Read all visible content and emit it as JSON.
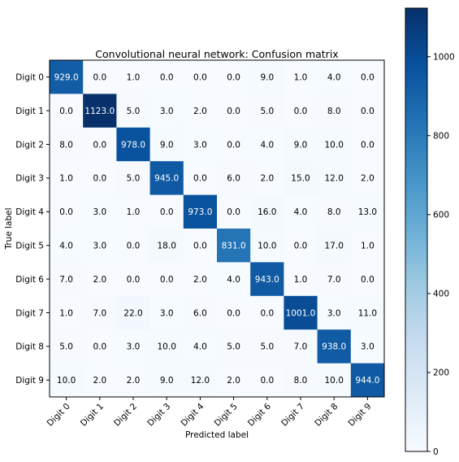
{
  "chart_data": {
    "type": "heatmap",
    "title": "Convolutional neural network: Confusion matrix",
    "xlabel": "Predicted label",
    "ylabel": "True label",
    "x_categories": [
      "Digit 0",
      "Digit 1",
      "Digit 2",
      "Digit 3",
      "Digit 4",
      "Digit 5",
      "Digit 6",
      "Digit 7",
      "Digit 8",
      "Digit 9"
    ],
    "y_categories": [
      "Digit 0",
      "Digit 1",
      "Digit 2",
      "Digit 3",
      "Digit 4",
      "Digit 5",
      "Digit 6",
      "Digit 7",
      "Digit 8",
      "Digit 9"
    ],
    "values": [
      [
        "929.0",
        "0.0",
        "1.0",
        "0.0",
        "0.0",
        "0.0",
        "9.0",
        "1.0",
        "4.0",
        "0.0"
      ],
      [
        "0.0",
        "1123.0",
        "5.0",
        "3.0",
        "2.0",
        "0.0",
        "5.0",
        "0.0",
        "8.0",
        "0.0"
      ],
      [
        "8.0",
        "0.0",
        "978.0",
        "9.0",
        "3.0",
        "0.0",
        "4.0",
        "9.0",
        "10.0",
        "0.0"
      ],
      [
        "1.0",
        "0.0",
        "5.0",
        "945.0",
        "0.0",
        "6.0",
        "2.0",
        "15.0",
        "12.0",
        "2.0"
      ],
      [
        "0.0",
        "3.0",
        "1.0",
        "0.0",
        "973.0",
        "0.0",
        "16.0",
        "4.0",
        "8.0",
        "13.0"
      ],
      [
        "4.0",
        "3.0",
        "0.0",
        "18.0",
        "0.0",
        "831.0",
        "10.0",
        "0.0",
        "17.0",
        "1.0"
      ],
      [
        "7.0",
        "2.0",
        "0.0",
        "0.0",
        "2.0",
        "4.0",
        "943.0",
        "1.0",
        "7.0",
        "0.0"
      ],
      [
        "1.0",
        "7.0",
        "22.0",
        "3.0",
        "6.0",
        "0.0",
        "0.0",
        "1001.0",
        "3.0",
        "11.0"
      ],
      [
        "5.0",
        "0.0",
        "3.0",
        "10.0",
        "4.0",
        "5.0",
        "5.0",
        "7.0",
        "938.0",
        "3.0"
      ],
      [
        "10.0",
        "2.0",
        "2.0",
        "9.0",
        "12.0",
        "2.0",
        "0.0",
        "8.0",
        "10.0",
        "944.0"
      ]
    ],
    "color_range": [
      0,
      1123
    ],
    "colormap": "Blues",
    "colorbar_ticks": [
      "0",
      "200",
      "400",
      "600",
      "800",
      "1000"
    ],
    "grid": false
  }
}
